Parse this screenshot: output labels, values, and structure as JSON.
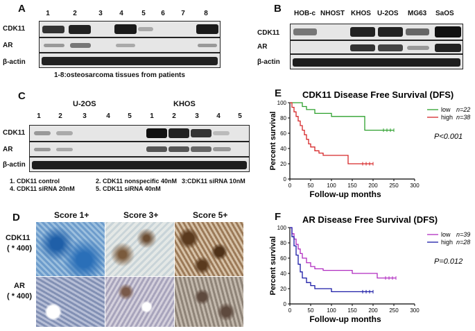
{
  "panelA": {
    "letter": "A",
    "lanes": [
      "1",
      "2",
      "3",
      "4",
      "5",
      "6",
      "7",
      "8"
    ],
    "rows": [
      "CDK11",
      "AR",
      "β-actin"
    ],
    "caption": "1-8:osteosarcoma tissues from patients"
  },
  "panelB": {
    "letter": "B",
    "lanes": [
      "HOB-c",
      "NHOST",
      "KHOS",
      "U-2OS",
      "MG63",
      "SaOS"
    ],
    "rows": [
      "CDK11",
      "AR",
      "β-actin"
    ]
  },
  "panelC": {
    "letter": "C",
    "group1": "U-2OS",
    "group2": "KHOS",
    "lanes": [
      "1",
      "2",
      "3",
      "4",
      "5",
      "1",
      "2",
      "3",
      "4",
      "5"
    ],
    "rows": [
      "CDK11",
      "AR",
      "β-actin"
    ],
    "legend": {
      "l1": "1. CDK11 control",
      "l2": "2. CDK11 nonspecific 40nM",
      "l3": "3:CDK11 siRNA 10nM",
      "l4": "4. CDK11 siRNA 20nM",
      "l5": "5. CDK11 siRNA 40nM"
    }
  },
  "panelD": {
    "letter": "D",
    "scores": [
      "Score 1+",
      "Score 3+",
      "Score 5+"
    ],
    "row1": {
      "name": "CDK11",
      "mag": "( * 400)"
    },
    "row2": {
      "name": "AR",
      "mag": "( * 400)"
    }
  },
  "colors": {
    "low_E": "#2ca02c",
    "high_E": "#d62728",
    "low_F": "#b02cc0",
    "high_F": "#1a1aa6"
  },
  "chart_data": [
    {
      "panel": "E",
      "type": "line",
      "title": "CDK11 Disease Free Survival (DFS)",
      "xlabel": "Follow-up months",
      "ylabel": "Percent survival",
      "xlim": [
        0,
        300
      ],
      "ylim": [
        0,
        100
      ],
      "xticks": [
        "0",
        "50",
        "100",
        "150",
        "200",
        "250",
        "300"
      ],
      "yticks": [
        "0",
        "20",
        "40",
        "60",
        "80",
        "100"
      ],
      "pvalue": "P<0.001",
      "series": [
        {
          "name": "low",
          "n": "n=22",
          "x": [
            0,
            20,
            30,
            40,
            60,
            100,
            175,
            180,
            250
          ],
          "y": [
            100,
            100,
            95,
            91,
            86,
            82,
            82,
            64,
            64
          ]
        },
        {
          "name": "high",
          "n": "n=38",
          "x": [
            0,
            5,
            10,
            15,
            20,
            25,
            30,
            35,
            40,
            45,
            50,
            60,
            70,
            80,
            140,
            200
          ],
          "y": [
            100,
            94,
            88,
            82,
            76,
            70,
            64,
            58,
            52,
            46,
            42,
            37,
            34,
            31,
            20,
            20
          ]
        }
      ]
    },
    {
      "panel": "F",
      "type": "line",
      "title": "AR Disease Free Survival (DFS)",
      "xlabel": "Follow-up months",
      "ylabel": "Percent survival",
      "xlim": [
        0,
        300
      ],
      "ylim": [
        0,
        100
      ],
      "xticks": [
        "0",
        "50",
        "100",
        "150",
        "200",
        "250",
        "300"
      ],
      "yticks": [
        "0",
        "20",
        "40",
        "60",
        "80",
        "100"
      ],
      "pvalue": "P=0.012",
      "series": [
        {
          "name": "low",
          "n": "n=39",
          "x": [
            0,
            5,
            10,
            15,
            20,
            25,
            30,
            40,
            50,
            60,
            80,
            100,
            150,
            200,
            210,
            255
          ],
          "y": [
            100,
            92,
            85,
            78,
            72,
            66,
            60,
            54,
            49,
            46,
            44,
            44,
            40,
            40,
            34,
            34
          ]
        },
        {
          "name": "high",
          "n": "n=28",
          "x": [
            0,
            5,
            10,
            15,
            20,
            25,
            30,
            40,
            50,
            60,
            100,
            200
          ],
          "y": [
            100,
            88,
            76,
            64,
            52,
            42,
            34,
            28,
            24,
            20,
            16,
            16
          ]
        }
      ]
    }
  ]
}
